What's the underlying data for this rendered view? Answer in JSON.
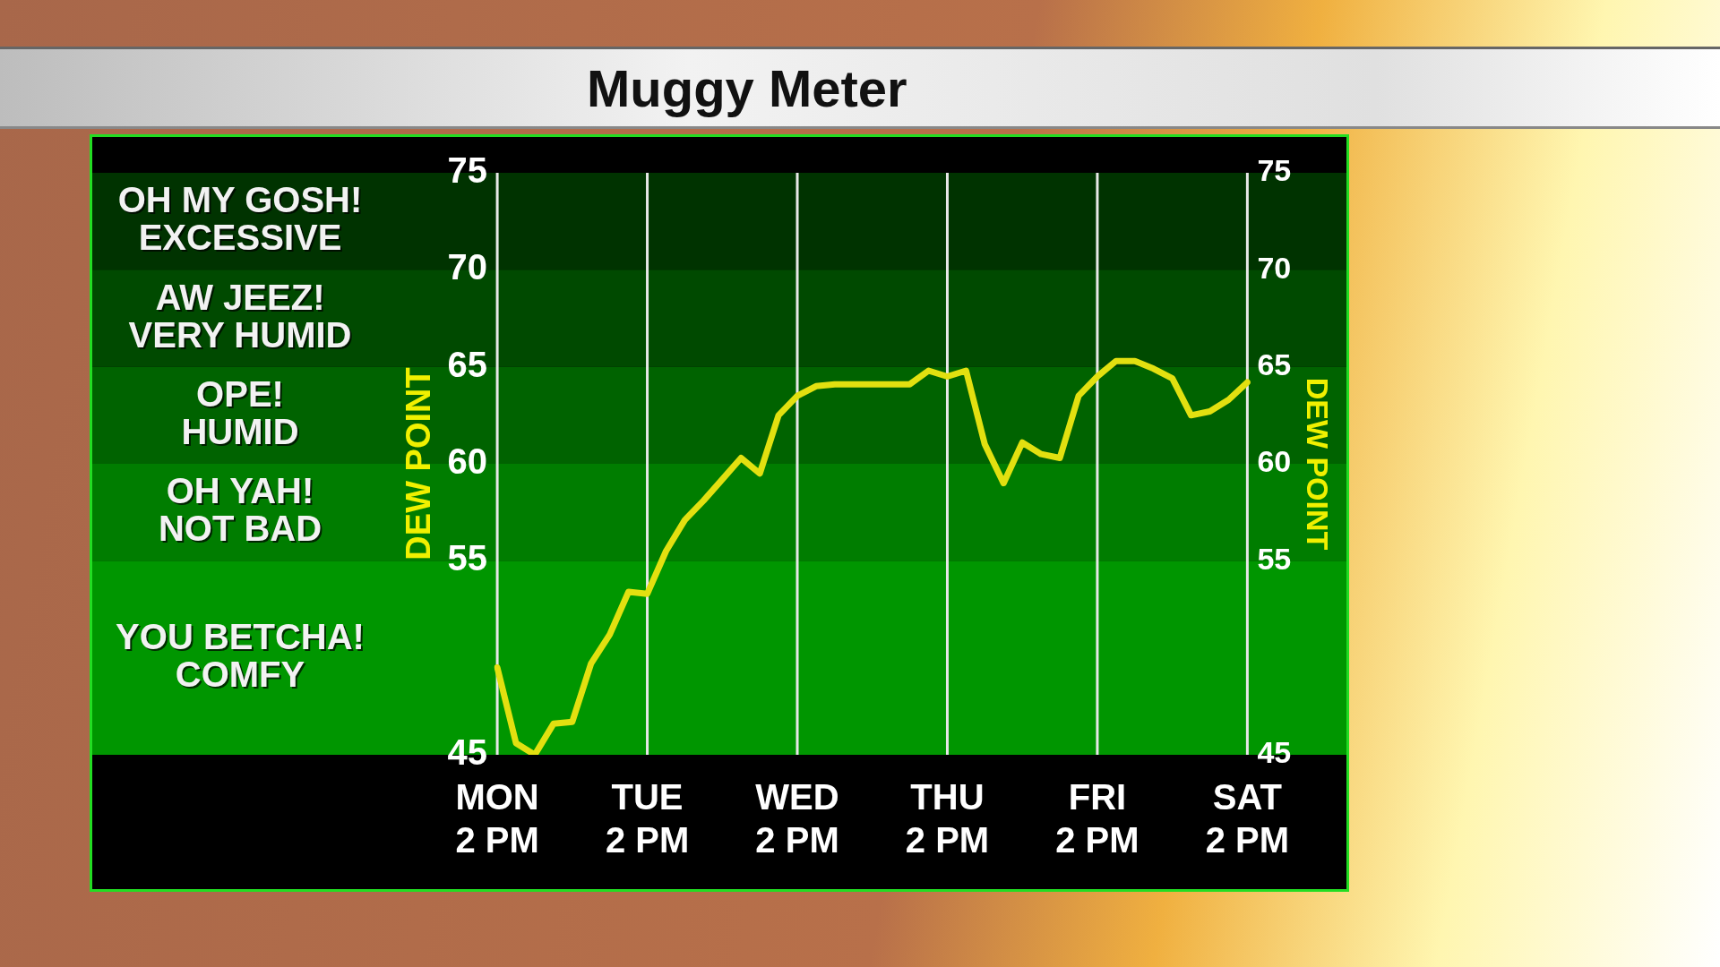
{
  "chart_data": {
    "type": "line",
    "title": "Muggy Meter",
    "ylabel": "DEW POINT",
    "y2label": "DEW POINT",
    "categories": [
      "MON\n2 PM",
      null,
      null,
      null,
      null,
      null,
      null,
      null,
      "TUE\n2 PM",
      null,
      null,
      null,
      null,
      null,
      null,
      null,
      "WED\n2 PM",
      null,
      null,
      null,
      null,
      null,
      null,
      null,
      "THU\n2 PM",
      null,
      null,
      null,
      null,
      null,
      null,
      null,
      "FRI\n2 PM",
      null,
      null,
      null,
      null,
      null,
      null,
      null,
      "SAT\n2 PM"
    ],
    "series": [
      {
        "color": "#e2e010",
        "values": [
          49.5,
          45.6,
          45,
          46.6,
          46.7,
          49.7,
          51.2,
          53.4,
          53.3,
          55.5,
          57.1,
          58.1,
          59.2,
          60.3,
          59.5,
          62.5,
          63.5,
          64.0,
          64.1,
          64.1,
          64.1,
          64.1,
          64.1,
          64.8,
          64.5,
          64.8,
          61.0,
          59.0,
          61.1,
          60.5,
          60.3,
          63.5,
          64.5,
          65.3,
          65.3,
          64.9,
          64.4,
          62.5,
          62.7,
          63.3,
          64.2
        ]
      }
    ],
    "ylim": [
      45,
      75
    ],
    "yticks": [
      45,
      55,
      60,
      65,
      70,
      75
    ],
    "y2lim": [
      45,
      75
    ],
    "y2ticks": [
      45,
      55,
      60,
      65,
      70,
      75
    ],
    "bands": [
      {
        "axis": "y",
        "from": 70,
        "to": 75,
        "label": "OH MY GOSH!\nEXCESSIVE",
        "color": "#003300"
      },
      {
        "axis": "y",
        "from": 65,
        "to": 70,
        "label": "AW JEEZ!\nVERY HUMID",
        "color": "#004a00"
      },
      {
        "axis": "y",
        "from": 60,
        "to": 65,
        "label": "OPE!\nHUMID",
        "color": "#006300"
      },
      {
        "axis": "y",
        "from": 55,
        "to": 60,
        "label": "OH YAH!\nNOT BAD",
        "color": "#007d00"
      },
      {
        "axis": "y",
        "from": 45,
        "to": 55,
        "label": "YOU BETCHA!\nCOMFY",
        "color": "#009600"
      }
    ],
    "grid": "x",
    "legend": false,
    "marker": "none",
    "line_style": "solid"
  }
}
